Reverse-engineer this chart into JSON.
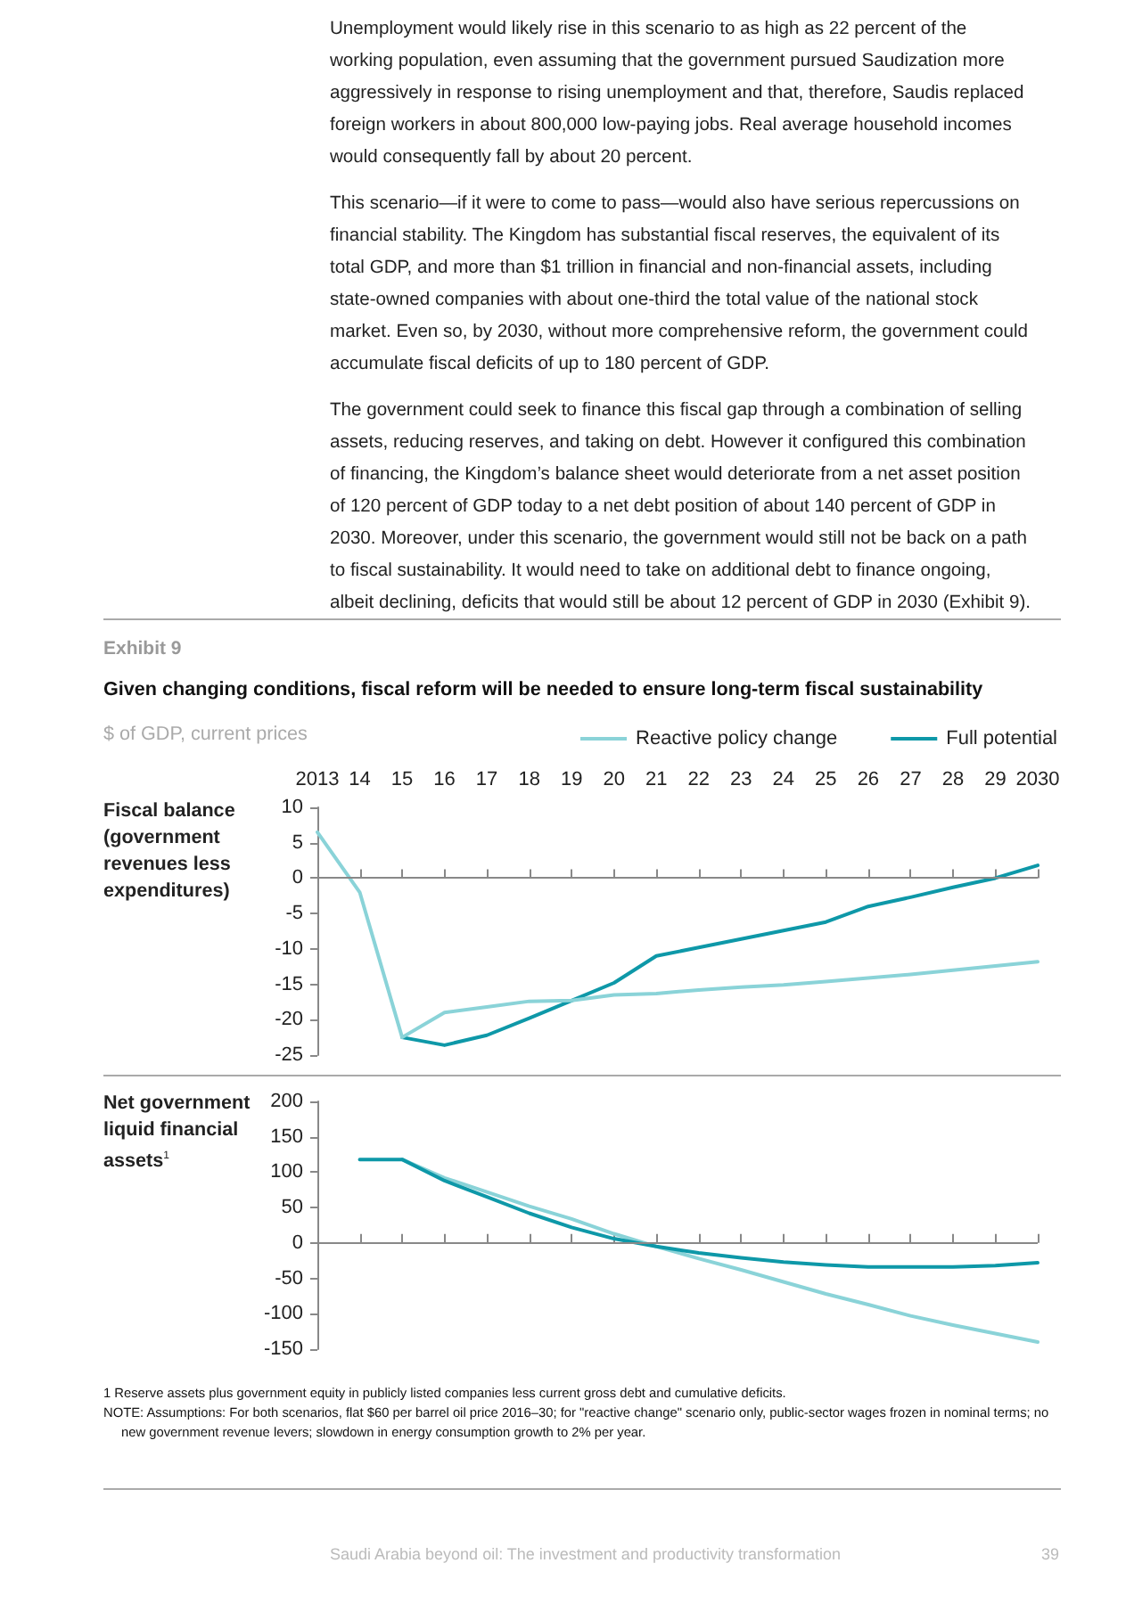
{
  "chart_data": [
    {
      "type": "line",
      "title": "Given changing conditions, fiscal reform will be needed to ensure long-term fiscal sustainability",
      "subtitle": "$ of GDP, current prices",
      "ylabel": "Fiscal balance (government revenues less expenditures)",
      "annotations": [
        "Unemployment would likely rise in this scenario to as high as 22 percent of the working population, even assuming that the government pursued Saudization more aggressively in response to rising unemployment and that, therefore, Saudis replaced foreign workers in about 800,000 low-paying jobs. Real average household incomes would consequently fall by about 20 percent.",
        "This scenario—if it were to come to pass—would also have serious repercussions on financial stability. The Kingdom has substantial fiscal reserves, the equivalent of its total GDP, and more than $1 trillion in financial and non-financial assets, including state-owned companies with about one-third the total value of the national stock market. Even so, by 2030, without more comprehensive reform, the government could accumulate fiscal deficits of up to 180 percent of GDP.",
        "The government could seek to finance this fiscal gap through a combination of selling assets, reducing reserves, and taking on debt. However it configured this combination of financing, the Kingdom’s balance sheet would deteriorate from a net asset position of 120 percent of GDP today to a net debt position of about 140 percent of GDP in 2030. Moreover, under this scenario, the government would still not be back on a path to fiscal sustainability. It would need to take on additional debt to finance ongoing, albeit declining, deficits that would still be about 12 percent of GDP in 2030 (Exhibit 9).",
        "Exhibit 9"
      ],
      "x": [
        2013,
        2014,
        2015,
        2016,
        2017,
        2018,
        2019,
        2020,
        2021,
        2022,
        2023,
        2024,
        2025,
        2026,
        2027,
        2028,
        2029,
        2030
      ],
      "xlim": [
        2013,
        2030
      ],
      "xticks": [
        2013,
        {
          "value": 2014,
          "label": "14"
        },
        {
          "value": 2015,
          "label": "15"
        },
        {
          "value": 2016,
          "label": "16"
        },
        {
          "value": 2017,
          "label": "17"
        },
        {
          "value": 2018,
          "label": "18"
        },
        {
          "value": 2019,
          "label": "19"
        },
        {
          "value": 2020,
          "label": "20"
        },
        {
          "value": 2021,
          "label": "21"
        },
        {
          "value": 2022,
          "label": "22"
        },
        {
          "value": 2023,
          "label": "23"
        },
        {
          "value": 2024,
          "label": "24"
        },
        {
          "value": 2025,
          "label": "25"
        },
        {
          "value": 2026,
          "label": "26"
        },
        {
          "value": 2027,
          "label": "27"
        },
        {
          "value": 2028,
          "label": "28"
        },
        {
          "value": 2029,
          "label": "29"
        },
        2030
      ],
      "ylim": [
        -25,
        10
      ],
      "yticks": [
        -25,
        -20,
        -15,
        -10,
        -5,
        0,
        5,
        10
      ],
      "series": [
        {
          "name": "Full potential",
          "color": "#0e98a8",
          "values": [
            null,
            null,
            -22.5,
            -23.6,
            -22.2,
            -19.8,
            -17.3,
            -14.8,
            -11,
            -9.8,
            -8.6,
            -7.4,
            -6.2,
            -4,
            -2.7,
            -1.3,
            0,
            1.8
          ]
        },
        {
          "name": "Reactive policy change",
          "color": "#8ad3d8",
          "values": [
            6.5,
            -2,
            -22.5,
            -19,
            -18.2,
            -17.4,
            -17.3,
            -16.5,
            -16.3,
            -15.8,
            -15.4,
            -15.1,
            -14.6,
            -14.1,
            -13.6,
            -13,
            -12.4,
            -11.8
          ]
        }
      ],
      "ref_lines": [
        {
          "axis": "y",
          "value": 0,
          "color": "#888888"
        }
      ],
      "legend": "top right",
      "grid": false,
      "marker": "none",
      "line_style": "solid"
    },
    {
      "type": "line",
      "ylabel": "Net government liquid financial assets$^{1}$",
      "annotations": [
        "1   Reserve assets plus government equity in publicly listed companies less current gross debt and cumulative deficits.",
        "NOTE: Assumptions: For both scenarios, flat $60 per barrel oil price 2016–30; for \"reactive change\" scenario only, public-sector wages frozen in nominal terms; no new government revenue levers; slowdown in energy consumption growth to 2% per year.",
        "Saudi Arabia beyond oil: The investment and productivity transformation",
        "39"
      ],
      "x": [
        2014,
        2015,
        2016,
        2017,
        2018,
        2019,
        2020,
        2021,
        2022,
        2023,
        2024,
        2025,
        2026,
        2027,
        2028,
        2029,
        2030
      ],
      "xlim": [
        2013,
        2030
      ],
      "xticks": [
        {
          "value": 2014,
          "label": null
        },
        {
          "value": 2015,
          "label": null
        },
        {
          "value": 2016,
          "label": null
        },
        {
          "value": 2017,
          "label": null
        },
        {
          "value": 2018,
          "label": null
        },
        {
          "value": 2019,
          "label": null
        },
        {
          "value": 2020,
          "label": null
        },
        {
          "value": 2021,
          "label": null
        },
        {
          "value": 2022,
          "label": null
        },
        {
          "value": 2023,
          "label": null
        },
        {
          "value": 2024,
          "label": null
        },
        {
          "value": 2025,
          "label": null
        },
        {
          "value": 2026,
          "label": null
        },
        {
          "value": 2027,
          "label": null
        },
        {
          "value": 2028,
          "label": null
        },
        {
          "value": 2029,
          "label": null
        },
        {
          "value": 2030,
          "label": null
        }
      ],
      "ylim": [
        -150,
        200
      ],
      "yticks": [
        -150,
        -100,
        -50,
        0,
        50,
        100,
        150,
        200
      ],
      "series": [
        {
          "color": "#8ad3d8",
          "values": [
            null,
            118,
            92,
            72,
            52,
            34,
            13,
            -5,
            -22,
            -38,
            -55,
            -72,
            -87,
            -103,
            -116,
            -128,
            -140
          ]
        },
        {
          "color": "#0e98a8",
          "values": [
            118,
            118,
            88,
            65,
            42,
            22,
            6,
            -5,
            -14,
            -21,
            -27,
            -31,
            -34,
            -34,
            -34,
            -32,
            -28
          ]
        }
      ],
      "ref_lines": [
        {
          "axis": "y",
          "value": 0,
          "color": "#888888"
        }
      ],
      "tick_labels": "y",
      "grid": false,
      "marker": "none",
      "line_style": "solid"
    }
  ]
}
